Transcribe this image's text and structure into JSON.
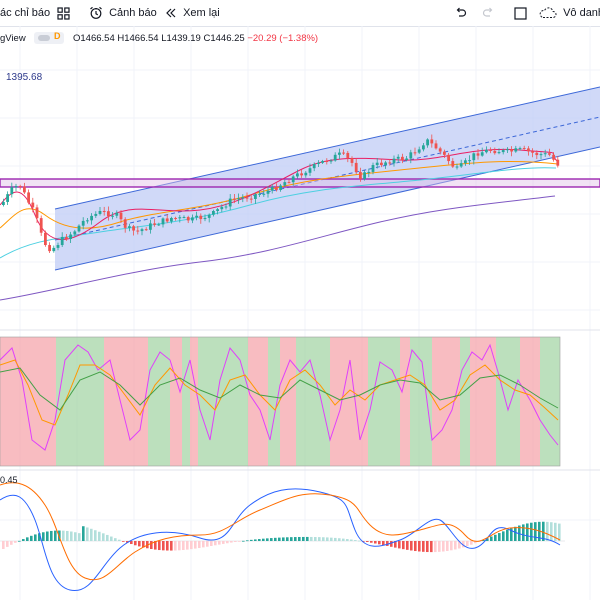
{
  "toolbar": {
    "indicators_label": "ác chỉ báo",
    "alert_label": "Cảnh báo",
    "replay_label": "Xem lại",
    "untitled_label": "Vô danh"
  },
  "legend": {
    "symbol_suffix": "gView",
    "interval_badge": "D",
    "ohlc_o": "O1466.54",
    "ohlc_h": "H1466.54",
    "ohlc_l": "L1439.19",
    "ohlc_c": "C1446.25",
    "change": "−20.29 (−1.38%)"
  },
  "price_note": "1395.68",
  "macd_value": "0.45",
  "colors": {
    "up_candle": "#26a69a",
    "down_candle": "#ef5350",
    "channel_fill": "#bcc9f5",
    "channel_line": "#3d68d8",
    "zone_line": "#9c27b0",
    "ma_fast": "#e91e63",
    "ma_slow": "#ff9800",
    "ma_cyan": "#4dd0e1",
    "ma_long": "#7e57c2",
    "stoch_k": "#e040fb",
    "macd_line": "#2962ff",
    "signal_line": "#ff6d00"
  },
  "icons": [
    "grid-icon",
    "alarm-clock-icon",
    "replay-icon",
    "undo-icon",
    "redo-icon",
    "layout-square-icon",
    "cloud-icon"
  ]
}
